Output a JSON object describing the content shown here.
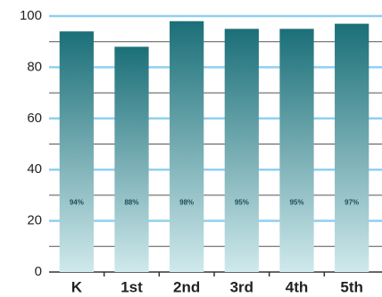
{
  "chart_data": {
    "type": "bar",
    "categories": [
      "K",
      "1st",
      "2nd",
      "3rd",
      "4th",
      "5th"
    ],
    "values": [
      94,
      88,
      98,
      95,
      95,
      97
    ],
    "value_labels": [
      "94%",
      "88%",
      "98%",
      "95%",
      "95%",
      "97%"
    ],
    "color": "#1b6f78",
    "ylim": [
      0,
      100
    ],
    "yticks": [
      0,
      20,
      40,
      60,
      80,
      100
    ],
    "minor_yticks": [
      10,
      30,
      50,
      70,
      90
    ],
    "grid": true
  }
}
